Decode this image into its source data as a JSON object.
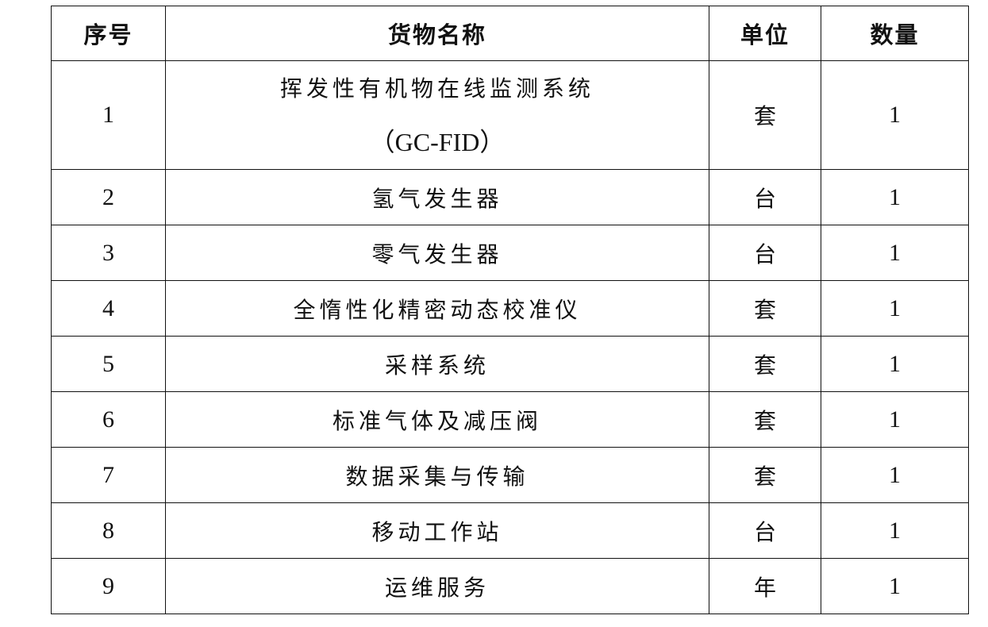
{
  "table": {
    "headers": [
      "序号",
      "货物名称",
      "单位",
      "数量"
    ],
    "rows": [
      {
        "no": "1",
        "name": "挥发性有机物在线监测系统",
        "name_line2": "（GC-FID）",
        "unit": "套",
        "qty": "1"
      },
      {
        "no": "2",
        "name": "氢气发生器",
        "unit": "台",
        "qty": "1"
      },
      {
        "no": "3",
        "name": "零气发生器",
        "unit": "台",
        "qty": "1"
      },
      {
        "no": "4",
        "name": "全惰性化精密动态校准仪",
        "unit": "套",
        "qty": "1"
      },
      {
        "no": "5",
        "name": "采样系统",
        "unit": "套",
        "qty": "1"
      },
      {
        "no": "6",
        "name": "标准气体及减压阀",
        "unit": "套",
        "qty": "1"
      },
      {
        "no": "7",
        "name": "数据采集与传输",
        "unit": "套",
        "qty": "1"
      },
      {
        "no": "8",
        "name": "移动工作站",
        "unit": "台",
        "qty": "1"
      },
      {
        "no": "9",
        "name": "运维服务",
        "unit": "年",
        "qty": "1"
      }
    ]
  }
}
